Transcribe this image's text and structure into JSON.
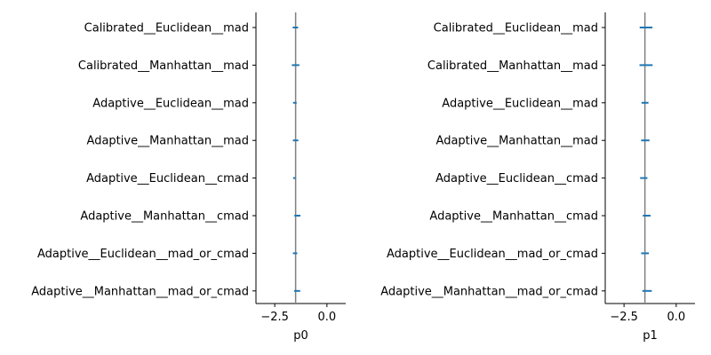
{
  "chart_data": [
    {
      "type": "errorbar",
      "xlabel": "p0",
      "xlim": [
        -3.4,
        0.9
      ],
      "xticks": [
        -2.5,
        0.0
      ],
      "xtick_labels": [
        "−2.5",
        "0.0"
      ],
      "reference_line_x": -1.5,
      "grid": false,
      "categories": [
        "Calibrated__Euclidean__mad",
        "Calibrated__Manhattan__mad",
        "Adaptive__Euclidean__mad",
        "Adaptive__Manhattan__mad",
        "Adaptive__Euclidean__cmad",
        "Adaptive__Manhattan__cmad",
        "Adaptive__Euclidean__mad_or_cmad",
        "Adaptive__Manhattan__mad_or_cmad"
      ],
      "intervals": [
        [
          -1.64,
          -1.38
        ],
        [
          -1.68,
          -1.32
        ],
        [
          -1.62,
          -1.45
        ],
        [
          -1.63,
          -1.37
        ],
        [
          -1.62,
          -1.5
        ],
        [
          -1.56,
          -1.27
        ],
        [
          -1.63,
          -1.42
        ],
        [
          -1.57,
          -1.28
        ]
      ]
    },
    {
      "type": "errorbar",
      "xlabel": "p1",
      "xlim": [
        -3.4,
        0.9
      ],
      "xticks": [
        -2.5,
        0.0
      ],
      "xtick_labels": [
        "−2.5",
        "0.0"
      ],
      "reference_line_x": -1.5,
      "grid": false,
      "categories": [
        "Calibrated__Euclidean__mad",
        "Calibrated__Manhattan__mad",
        "Adaptive__Euclidean__mad",
        "Adaptive__Manhattan__mad",
        "Adaptive__Euclidean__cmad",
        "Adaptive__Manhattan__cmad",
        "Adaptive__Euclidean__mad_or_cmad",
        "Adaptive__Manhattan__mad_or_cmad"
      ],
      "intervals": [
        [
          -1.75,
          -1.14
        ],
        [
          -1.76,
          -1.13
        ],
        [
          -1.66,
          -1.33
        ],
        [
          -1.68,
          -1.28
        ],
        [
          -1.73,
          -1.38
        ],
        [
          -1.6,
          -1.23
        ],
        [
          -1.68,
          -1.31
        ],
        [
          -1.62,
          -1.17
        ]
      ]
    }
  ],
  "colors": {
    "interval": "#1f77b4",
    "reference_line": "#808080",
    "axis": "#000000"
  }
}
